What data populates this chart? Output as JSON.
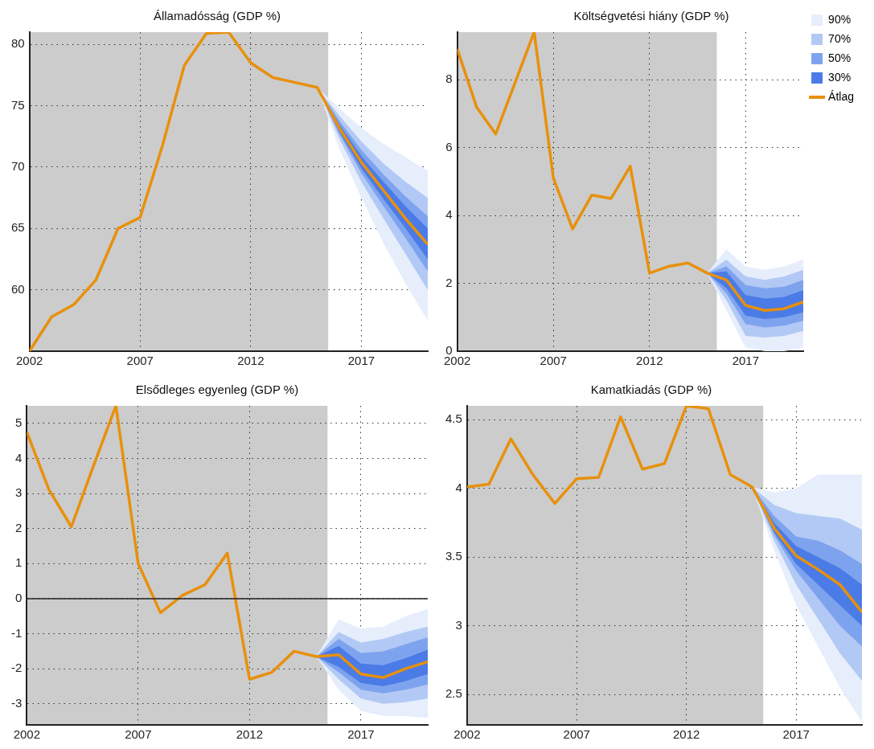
{
  "chart_data": [
    {
      "type": "line",
      "title": "Államadósság (GDP %)",
      "x": [
        2002,
        2003,
        2004,
        2005,
        2006,
        2007,
        2008,
        2009,
        2010,
        2011,
        2012,
        2013,
        2014,
        2015,
        2016,
        2017,
        2018,
        2019,
        2020
      ],
      "xlim": [
        2002,
        2020
      ],
      "xticks": [
        2002,
        2007,
        2012,
        2017
      ],
      "ylim": [
        55,
        81
      ],
      "yticks": [
        60,
        65,
        70,
        75,
        80
      ],
      "grid": true,
      "legend": false,
      "bands": [
        {
          "axis": "x",
          "from": 2002,
          "to": 2015.5,
          "color": "#cccccc"
        }
      ],
      "series": [
        {
          "type": "line",
          "color": "#e6eefc",
          "x": [
            2015,
            2016,
            2017,
            2018,
            2019,
            2020
          ],
          "values": [
            null,
            null,
            null,
            null,
            null,
            null
          ],
          "lower": [
            76.5,
            71.5,
            67.5,
            63.8,
            60.5,
            57.5
          ],
          "upper": [
            76.5,
            74.8,
            73.2,
            71.9,
            70.8,
            69.7
          ]
        },
        {
          "type": "line",
          "color": "#b3c9f5",
          "x": [
            2015,
            2016,
            2017,
            2018,
            2019,
            2020
          ],
          "values": [
            null,
            null,
            null,
            null,
            null,
            null
          ],
          "lower": [
            76.5,
            72.3,
            68.8,
            65.8,
            62.9,
            60.0
          ],
          "upper": [
            76.5,
            74.2,
            72.1,
            70.3,
            68.8,
            67.5
          ]
        },
        {
          "type": "line",
          "color": "#7ea3ee",
          "x": [
            2015,
            2016,
            2017,
            2018,
            2019,
            2020
          ],
          "values": [
            null,
            null,
            null,
            null,
            null,
            null
          ],
          "lower": [
            76.5,
            72.7,
            69.5,
            66.8,
            64.2,
            61.5
          ],
          "upper": [
            76.5,
            73.8,
            71.4,
            69.4,
            67.6,
            66.0
          ]
        },
        {
          "type": "line",
          "color": "#4b7be6",
          "x": [
            2015,
            2016,
            2017,
            2018,
            2019,
            2020
          ],
          "values": [
            null,
            null,
            null,
            null,
            null,
            null
          ],
          "lower": [
            76.5,
            72.9,
            69.9,
            67.4,
            65.0,
            62.5
          ],
          "upper": [
            76.5,
            73.5,
            70.9,
            68.8,
            66.8,
            65.0
          ]
        },
        {
          "type": "line",
          "color": "#e8900c",
          "values": [
            55.0,
            57.8,
            58.8,
            60.8,
            65.0,
            65.9,
            71.7,
            78.3,
            80.9,
            81.0,
            78.5,
            77.3,
            76.9,
            76.5,
            73.2,
            70.4,
            68.1,
            65.8,
            63.7
          ]
        }
      ]
    },
    {
      "type": "line",
      "title": "Költségvetési hiány (GDP %)",
      "x": [
        2002,
        2003,
        2004,
        2005,
        2006,
        2007,
        2008,
        2009,
        2010,
        2011,
        2012,
        2013,
        2014,
        2015,
        2016,
        2017,
        2018,
        2019,
        2020
      ],
      "xlim": [
        2002,
        2020
      ],
      "xticks": [
        2002,
        2007,
        2012,
        2017
      ],
      "ylim": [
        0,
        9.4
      ],
      "yticks": [
        0,
        2,
        4,
        6,
        8
      ],
      "grid": true,
      "legend": "top right",
      "bands": [
        {
          "axis": "x",
          "from": 2002,
          "to": 2015.5,
          "color": "#cccccc"
        }
      ],
      "series": [
        {
          "name": "90%",
          "type": "line",
          "color": "#e6eefc",
          "x": [
            2015,
            2016,
            2017,
            2018,
            2019,
            2020
          ],
          "values": [
            null,
            null,
            null,
            null,
            null,
            null
          ],
          "lower": [
            2.3,
            1.2,
            0.1,
            0.0,
            0.0,
            0.1
          ],
          "upper": [
            2.3,
            3.0,
            2.5,
            2.4,
            2.5,
            2.7
          ]
        },
        {
          "name": "70%",
          "type": "line",
          "color": "#b3c9f5",
          "x": [
            2015,
            2016,
            2017,
            2018,
            2019,
            2020
          ],
          "values": [
            null,
            null,
            null,
            null,
            null,
            null
          ],
          "lower": [
            2.3,
            1.5,
            0.45,
            0.4,
            0.45,
            0.6
          ],
          "upper": [
            2.3,
            2.7,
            2.2,
            2.1,
            2.2,
            2.4
          ]
        },
        {
          "name": "50%",
          "type": "line",
          "color": "#7ea3ee",
          "x": [
            2015,
            2016,
            2017,
            2018,
            2019,
            2020
          ],
          "values": [
            null,
            null,
            null,
            null,
            null,
            null
          ],
          "lower": [
            2.3,
            1.7,
            0.8,
            0.7,
            0.75,
            0.9
          ],
          "upper": [
            2.3,
            2.5,
            1.95,
            1.85,
            1.9,
            2.1
          ]
        },
        {
          "name": "30%",
          "type": "line",
          "color": "#4b7be6",
          "x": [
            2015,
            2016,
            2017,
            2018,
            2019,
            2020
          ],
          "values": [
            null,
            null,
            null,
            null,
            null,
            null
          ],
          "lower": [
            2.3,
            1.85,
            1.05,
            0.95,
            1.0,
            1.15
          ],
          "upper": [
            2.3,
            2.35,
            1.65,
            1.55,
            1.6,
            1.8
          ]
        },
        {
          "name": "Átlag",
          "type": "line",
          "color": "#e8900c",
          "values": [
            8.9,
            7.2,
            6.4,
            7.9,
            9.4,
            5.1,
            3.6,
            4.6,
            4.5,
            5.45,
            2.3,
            2.5,
            2.6,
            2.3,
            2.1,
            1.35,
            1.2,
            1.25,
            1.45
          ]
        }
      ]
    },
    {
      "type": "line",
      "title": "Elsődleges egyenleg (GDP %)",
      "x": [
        2002,
        2003,
        2004,
        2005,
        2006,
        2007,
        2008,
        2009,
        2010,
        2011,
        2012,
        2013,
        2014,
        2015,
        2016,
        2017,
        2018,
        2019,
        2020
      ],
      "xlim": [
        2002,
        2020
      ],
      "xticks": [
        2002,
        2007,
        2012,
        2017
      ],
      "ylim": [
        -3.6,
        5.5
      ],
      "yticks": [
        -3,
        -2,
        -1,
        0,
        1,
        2,
        3,
        4,
        5
      ],
      "grid": true,
      "legend": false,
      "bands": [
        {
          "axis": "x",
          "from": 2002,
          "to": 2015.5,
          "color": "#cccccc"
        }
      ],
      "ref_lines": [
        {
          "axis": "y",
          "value": 0,
          "color": "#222222"
        }
      ],
      "series": [
        {
          "type": "line",
          "color": "#e6eefc",
          "x": [
            2015,
            2016,
            2017,
            2018,
            2019,
            2020
          ],
          "values": [
            null,
            null,
            null,
            null,
            null,
            null
          ],
          "lower": [
            -1.65,
            -2.6,
            -3.2,
            -3.35,
            -3.35,
            -3.4
          ],
          "upper": [
            -1.65,
            -0.6,
            -0.85,
            -0.8,
            -0.5,
            -0.3
          ]
        },
        {
          "type": "line",
          "color": "#b3c9f5",
          "x": [
            2015,
            2016,
            2017,
            2018,
            2019,
            2020
          ],
          "values": [
            null,
            null,
            null,
            null,
            null,
            null
          ],
          "lower": [
            -1.65,
            -2.3,
            -2.85,
            -3.0,
            -2.95,
            -2.85
          ],
          "upper": [
            -1.65,
            -0.95,
            -1.25,
            -1.15,
            -0.95,
            -0.8
          ]
        },
        {
          "type": "line",
          "color": "#7ea3ee",
          "x": [
            2015,
            2016,
            2017,
            2018,
            2019,
            2020
          ],
          "values": [
            null,
            null,
            null,
            null,
            null,
            null
          ],
          "lower": [
            -1.65,
            -2.1,
            -2.6,
            -2.7,
            -2.6,
            -2.45
          ],
          "upper": [
            -1.65,
            -1.15,
            -1.55,
            -1.5,
            -1.3,
            -1.1
          ]
        },
        {
          "type": "line",
          "color": "#4b7be6",
          "x": [
            2015,
            2016,
            2017,
            2018,
            2019,
            2020
          ],
          "values": [
            null,
            null,
            null,
            null,
            null,
            null
          ],
          "lower": [
            -1.65,
            -1.95,
            -2.4,
            -2.5,
            -2.35,
            -2.15
          ],
          "upper": [
            -1.65,
            -1.35,
            -1.85,
            -1.9,
            -1.7,
            -1.45
          ]
        },
        {
          "type": "line",
          "color": "#e8900c",
          "values": [
            4.75,
            3.1,
            2.05,
            3.8,
            5.5,
            1.0,
            -0.4,
            0.1,
            0.4,
            1.3,
            -2.3,
            -2.1,
            -1.5,
            -1.65,
            -1.6,
            -2.15,
            -2.25,
            -2.0,
            -1.8
          ]
        }
      ]
    },
    {
      "type": "line",
      "title": "Kamatkiadás (GDP %)",
      "x": [
        2002,
        2003,
        2004,
        2005,
        2006,
        2007,
        2008,
        2009,
        2010,
        2011,
        2012,
        2013,
        2014,
        2015,
        2016,
        2017,
        2018,
        2019,
        2020
      ],
      "xlim": [
        2002,
        2020
      ],
      "xticks": [
        2002,
        2007,
        2012,
        2017
      ],
      "ylim": [
        2.28,
        4.6
      ],
      "yticks": [
        2.5,
        3,
        3.5,
        4,
        4.5
      ],
      "grid": true,
      "legend": false,
      "bands": [
        {
          "axis": "x",
          "from": 2002,
          "to": 2015.5,
          "color": "#cccccc"
        }
      ],
      "series": [
        {
          "type": "line",
          "color": "#e6eefc",
          "x": [
            2015,
            2016,
            2017,
            2018,
            2019,
            2020
          ],
          "values": [
            null,
            null,
            null,
            null,
            null,
            null
          ],
          "lower": [
            4.01,
            3.55,
            3.15,
            2.85,
            2.55,
            2.3
          ],
          "upper": [
            4.01,
            3.97,
            4.0,
            4.1,
            4.1,
            4.1
          ]
        },
        {
          "type": "line",
          "color": "#b3c9f5",
          "x": [
            2015,
            2016,
            2017,
            2018,
            2019,
            2020
          ],
          "values": [
            null,
            null,
            null,
            null,
            null,
            null
          ],
          "lower": [
            4.01,
            3.62,
            3.3,
            3.05,
            2.8,
            2.6
          ],
          "upper": [
            4.01,
            3.88,
            3.82,
            3.8,
            3.78,
            3.7
          ]
        },
        {
          "type": "line",
          "color": "#7ea3ee",
          "x": [
            2015,
            2016,
            2017,
            2018,
            2019,
            2020
          ],
          "values": [
            null,
            null,
            null,
            null,
            null,
            null
          ],
          "lower": [
            4.01,
            3.66,
            3.4,
            3.2,
            3.0,
            2.85
          ],
          "upper": [
            4.01,
            3.8,
            3.65,
            3.62,
            3.55,
            3.45
          ]
        },
        {
          "type": "line",
          "color": "#4b7be6",
          "x": [
            2015,
            2016,
            2017,
            2018,
            2019,
            2020
          ],
          "values": [
            null,
            null,
            null,
            null,
            null,
            null
          ],
          "lower": [
            4.01,
            3.68,
            3.45,
            3.3,
            3.15,
            3.0
          ],
          "upper": [
            4.01,
            3.75,
            3.58,
            3.5,
            3.42,
            3.3
          ]
        },
        {
          "type": "line",
          "color": "#e8900c",
          "values": [
            4.01,
            4.03,
            4.36,
            4.1,
            3.89,
            4.07,
            4.08,
            4.52,
            4.14,
            4.18,
            4.6,
            4.58,
            4.1,
            4.01,
            3.71,
            3.51,
            3.41,
            3.3,
            3.1
          ]
        }
      ]
    }
  ]
}
